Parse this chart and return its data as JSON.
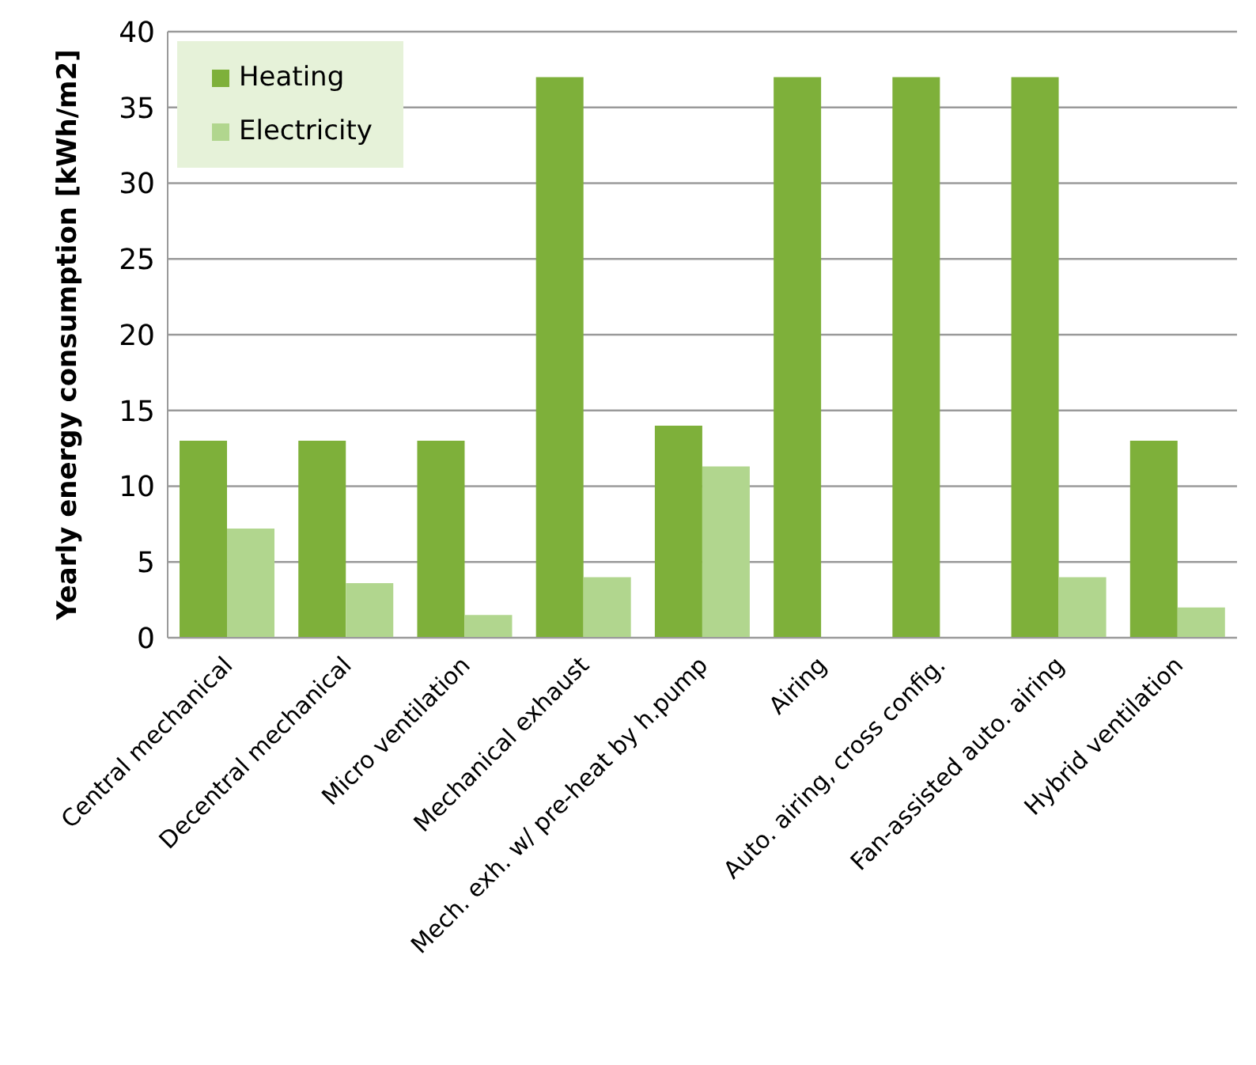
{
  "chart_data": {
    "type": "bar",
    "ylabel": "Yearly energy consumption [kWh/m2]",
    "categories": [
      "Central mechanical",
      "Decentral mechanical",
      "Micro ventilation",
      "Mechanical exhaust",
      "Mech. exh. w/ pre-heat by h.pump",
      "Airing",
      "Auto. airing, cross config.",
      "Fan-assisted auto. airing",
      "Hybrid ventilation"
    ],
    "series": [
      {
        "name": "Heating",
        "color": "#7eb03a",
        "values": [
          13,
          13,
          13,
          37,
          14,
          37,
          37,
          37,
          13
        ]
      },
      {
        "name": "Electricity",
        "color": "#b1d68e",
        "values": [
          7.2,
          3.6,
          1.5,
          4.0,
          11.3,
          0,
          0,
          4.0,
          2.0
        ]
      }
    ],
    "ylim": [
      0,
      40
    ],
    "yticks": [
      0,
      5,
      10,
      15,
      20,
      25,
      30,
      35,
      40
    ],
    "grid": "y",
    "legend": "top left"
  }
}
